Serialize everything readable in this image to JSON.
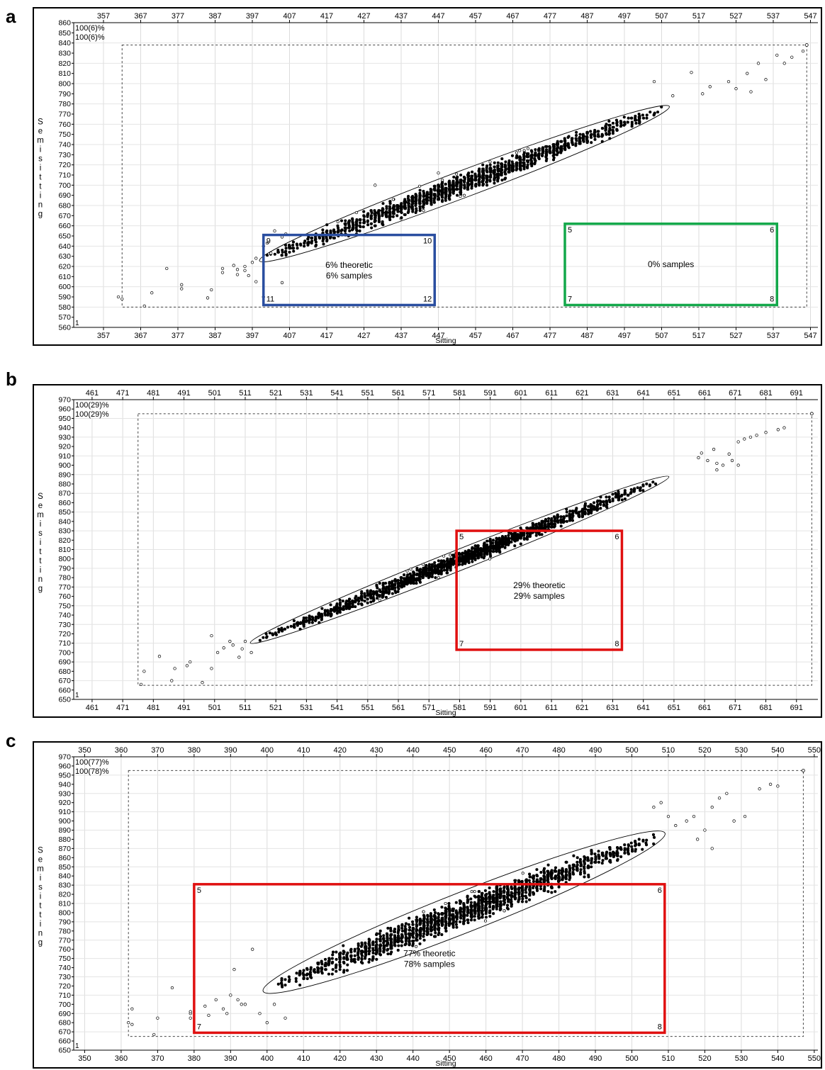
{
  "panels": [
    {
      "letter": "a",
      "chart_data": {
        "type": "scatter",
        "xlabel": "Sitting",
        "ylabel": "Semisitting",
        "xlim": [
          349,
          549
        ],
        "ylim": [
          560,
          860
        ],
        "xticks": [
          357,
          367,
          377,
          387,
          397,
          407,
          417,
          427,
          437,
          447,
          457,
          467,
          477,
          487,
          497,
          507,
          517,
          527,
          537,
          547
        ],
        "yticks": [
          560,
          570,
          580,
          590,
          600,
          610,
          620,
          630,
          640,
          650,
          660,
          670,
          680,
          690,
          700,
          710,
          720,
          730,
          740,
          750,
          760,
          770,
          780,
          790,
          800,
          810,
          820,
          830,
          840,
          850,
          860
        ],
        "yaxis_min_label": "1",
        "corner_labels": [
          "100(6)%",
          "100(6)%"
        ],
        "outer_box": {
          "x": [
            362,
            546
          ],
          "y": [
            580,
            838
          ]
        },
        "ellipse": {
          "x0": 400,
          "y0": 627,
          "x1": 508,
          "y1": 776,
          "halfwidth": 12
        },
        "cloud": {
          "x0": 400,
          "y0": 627,
          "x1": 508,
          "y1": 776,
          "n": 1400,
          "spread": 12
        },
        "outliers": [
          [
            361,
            590
          ],
          [
            362,
            588
          ],
          [
            368,
            581
          ],
          [
            370,
            594
          ],
          [
            374,
            618
          ],
          [
            378,
            598
          ],
          [
            378,
            602
          ],
          [
            385,
            589
          ],
          [
            386,
            597
          ],
          [
            389,
            618
          ],
          [
            389,
            614
          ],
          [
            392,
            621
          ],
          [
            393,
            617
          ],
          [
            393,
            612
          ],
          [
            395,
            620
          ],
          [
            395,
            616
          ],
          [
            396,
            611
          ],
          [
            397,
            624
          ],
          [
            398,
            628
          ],
          [
            398,
            605
          ],
          [
            400,
            640
          ],
          [
            401,
            643
          ],
          [
            403,
            655
          ],
          [
            405,
            604
          ],
          [
            406,
            652
          ],
          [
            400,
            590
          ],
          [
            405,
            649
          ],
          [
            402,
            633
          ],
          [
            420,
            664
          ],
          [
            425,
            673
          ],
          [
            430,
            700
          ],
          [
            447,
            712
          ],
          [
            505,
            802
          ],
          [
            515,
            811
          ],
          [
            520,
            797
          ],
          [
            525,
            802
          ],
          [
            530,
            810
          ],
          [
            533,
            820
          ],
          [
            535,
            804
          ],
          [
            540,
            820
          ],
          [
            542,
            826
          ],
          [
            545,
            832
          ],
          [
            527,
            795
          ],
          [
            518,
            790
          ],
          [
            510,
            788
          ],
          [
            531,
            792
          ],
          [
            538,
            828
          ]
        ],
        "regions": [
          {
            "color": "#2a4ea0",
            "x": [
              400,
              446
            ],
            "y": [
              582,
              651
            ],
            "labels": [
              "9",
              "10",
              "11",
              "12"
            ],
            "text": [
              "6% theoretic",
              "6% samples"
            ]
          },
          {
            "color": "#13a84a",
            "x": [
              481,
              538
            ],
            "y": [
              582,
              662
            ],
            "labels": [
              "5",
              "6",
              "7",
              "8"
            ],
            "text": [
              "0% samples"
            ]
          }
        ]
      }
    },
    {
      "letter": "b",
      "chart_data": {
        "type": "scatter",
        "xlabel": "Sitting",
        "ylabel": "Semisitting",
        "xlim": [
          455,
          698
        ],
        "ylim": [
          650,
          970
        ],
        "xticks": [
          461,
          471,
          481,
          491,
          501,
          511,
          521,
          531,
          541,
          551,
          561,
          571,
          581,
          591,
          601,
          611,
          621,
          631,
          641,
          651,
          661,
          671,
          681,
          691
        ],
        "yticks": [
          650,
          660,
          670,
          680,
          690,
          700,
          710,
          720,
          730,
          740,
          750,
          760,
          770,
          780,
          790,
          800,
          810,
          820,
          830,
          840,
          850,
          860,
          870,
          880,
          890,
          900,
          910,
          920,
          930,
          940,
          950,
          960,
          970
        ],
        "yaxis_min_label": "1",
        "corner_labels": [
          "100(29)%",
          "100(29)%"
        ],
        "outer_box": {
          "x": [
            476,
            696
          ],
          "y": [
            665,
            955
          ]
        },
        "ellipse": {
          "x0": 514,
          "y0": 712,
          "x1": 648,
          "y1": 886,
          "halfwidth": 10
        },
        "cloud": {
          "x0": 514,
          "y0": 712,
          "x1": 648,
          "y1": 886,
          "n": 1500,
          "spread": 10
        },
        "outliers": [
          [
            477,
            666
          ],
          [
            478,
            680
          ],
          [
            483,
            696
          ],
          [
            487,
            670
          ],
          [
            488,
            683
          ],
          [
            492,
            686
          ],
          [
            493,
            690
          ],
          [
            497,
            668
          ],
          [
            500,
            683
          ],
          [
            500,
            718
          ],
          [
            502,
            700
          ],
          [
            504,
            705
          ],
          [
            506,
            712
          ],
          [
            507,
            708
          ],
          [
            509,
            695
          ],
          [
            510,
            704
          ],
          [
            511,
            712
          ],
          [
            513,
            700
          ],
          [
            659,
            908
          ],
          [
            660,
            913
          ],
          [
            662,
            905
          ],
          [
            664,
            917
          ],
          [
            665,
            902
          ],
          [
            667,
            900
          ],
          [
            669,
            912
          ],
          [
            670,
            905
          ],
          [
            672,
            925
          ],
          [
            674,
            928
          ],
          [
            676,
            930
          ],
          [
            678,
            932
          ],
          [
            681,
            935
          ],
          [
            685,
            938
          ],
          [
            687,
            940
          ],
          [
            672,
            900
          ],
          [
            665,
            895
          ]
        ],
        "regions": [
          {
            "color": "#e01010",
            "x": [
              580,
              634
            ],
            "y": [
              703,
              830
            ],
            "labels": [
              "5",
              "6",
              "7",
              "8"
            ],
            "text": [
              "29% theoretic",
              "29% samples"
            ]
          }
        ]
      }
    },
    {
      "letter": "c",
      "chart_data": {
        "type": "scatter",
        "xlabel": "Sitting",
        "ylabel": "Semisitting",
        "xlim": [
          347,
          551
        ],
        "ylim": [
          650,
          970
        ],
        "xticks": [
          350,
          360,
          370,
          380,
          390,
          400,
          410,
          420,
          430,
          440,
          450,
          460,
          470,
          480,
          490,
          500,
          510,
          520,
          530,
          540,
          550
        ],
        "yticks": [
          650,
          660,
          670,
          680,
          690,
          700,
          710,
          720,
          730,
          740,
          750,
          760,
          770,
          780,
          790,
          800,
          810,
          820,
          830,
          840,
          850,
          860,
          870,
          880,
          890,
          900,
          910,
          920,
          930,
          940,
          950,
          960,
          970
        ],
        "yaxis_min_label": "1",
        "corner_labels": [
          "100(77)%",
          "100(78)%"
        ],
        "outer_box": {
          "x": [
            362,
            547
          ],
          "y": [
            665,
            955
          ]
        },
        "ellipse": {
          "x0": 400,
          "y0": 716,
          "x1": 508,
          "y1": 885,
          "halfwidth": 20
        },
        "cloud": {
          "x0": 400,
          "y0": 716,
          "x1": 508,
          "y1": 885,
          "n": 1600,
          "spread": 18
        },
        "outliers": [
          [
            362,
            680
          ],
          [
            363,
            695
          ],
          [
            363,
            678
          ],
          [
            369,
            667
          ],
          [
            370,
            685
          ],
          [
            374,
            718
          ],
          [
            379,
            685
          ],
          [
            379,
            690
          ],
          [
            379,
            692
          ],
          [
            383,
            698
          ],
          [
            384,
            688
          ],
          [
            386,
            705
          ],
          [
            388,
            695
          ],
          [
            389,
            690
          ],
          [
            390,
            710
          ],
          [
            391,
            738
          ],
          [
            392,
            705
          ],
          [
            393,
            700
          ],
          [
            394,
            700
          ],
          [
            396,
            760
          ],
          [
            398,
            690
          ],
          [
            400,
            680
          ],
          [
            402,
            700
          ],
          [
            405,
            685
          ],
          [
            506,
            915
          ],
          [
            508,
            920
          ],
          [
            510,
            905
          ],
          [
            512,
            895
          ],
          [
            515,
            900
          ],
          [
            517,
            905
          ],
          [
            520,
            890
          ],
          [
            522,
            915
          ],
          [
            524,
            925
          ],
          [
            526,
            930
          ],
          [
            528,
            900
          ],
          [
            531,
            905
          ],
          [
            535,
            935
          ],
          [
            538,
            940
          ],
          [
            540,
            938
          ],
          [
            522,
            870
          ],
          [
            518,
            880
          ]
        ],
        "regions": [
          {
            "color": "#e01010",
            "x": [
              380,
              509
            ],
            "y": [
              669,
              831
            ],
            "labels": [
              "5",
              "6",
              "7",
              "8"
            ],
            "text": [
              "77% theoretic",
              "78% samples"
            ]
          }
        ]
      }
    }
  ]
}
